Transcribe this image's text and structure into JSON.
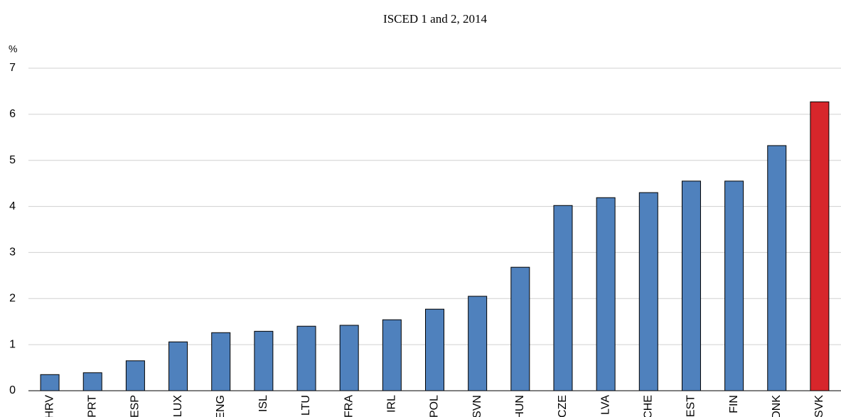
{
  "chart_data": {
    "type": "bar",
    "title": "ISCED 1 and 2, 2014",
    "y_label": "%",
    "categories": [
      "HRV",
      "PRT",
      "ESP",
      "LUX",
      "ENG",
      "ISL",
      "LTU",
      "FRA",
      "IRL",
      "POL",
      "SVN",
      "HUN",
      "CZE",
      "LVA",
      "CHE",
      "EST",
      "FIN",
      "DNK",
      "SVK"
    ],
    "values": [
      0.35,
      0.39,
      0.65,
      1.06,
      1.26,
      1.29,
      1.4,
      1.42,
      1.54,
      1.77,
      2.05,
      2.68,
      4.02,
      4.19,
      4.3,
      4.55,
      4.55,
      5.32,
      6.27
    ],
    "colors": [
      "#4f81bd",
      "#4f81bd",
      "#4f81bd",
      "#4f81bd",
      "#4f81bd",
      "#4f81bd",
      "#4f81bd",
      "#4f81bd",
      "#4f81bd",
      "#4f81bd",
      "#4f81bd",
      "#4f81bd",
      "#4f81bd",
      "#4f81bd",
      "#4f81bd",
      "#4f81bd",
      "#4f81bd",
      "#4f81bd",
      "#d7262b"
    ],
    "ylim": [
      0,
      7
    ],
    "yticks": [
      0,
      1,
      2,
      3,
      4,
      5,
      6,
      7
    ],
    "grid": true
  }
}
